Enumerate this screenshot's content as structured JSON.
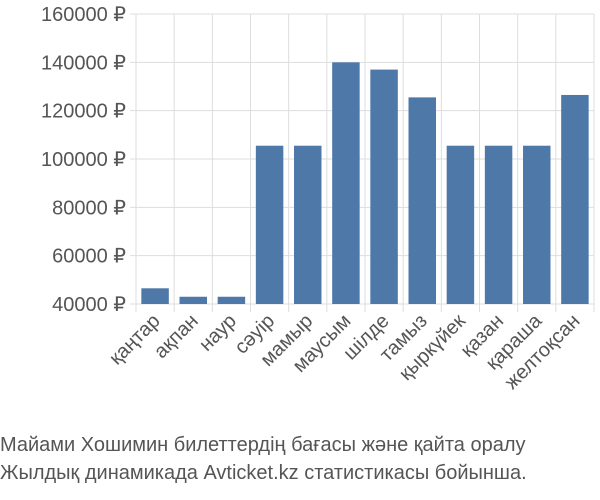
{
  "caption": {
    "line1": "Майами Хошимин билеттердің бағасы және қайта оралу",
    "line2": "Жылдық динамикада Avticket.kz статистикасы бойынша."
  },
  "chart_data": {
    "type": "bar",
    "categories": [
      "қаңтар",
      "ақпан",
      "наур",
      "сәуір",
      "мамыр",
      "маусым",
      "шілде",
      "тамыз",
      "қыркүйек",
      "қазан",
      "қараша",
      "желтоқсан"
    ],
    "values": [
      46500,
      43000,
      43000,
      105500,
      105500,
      140000,
      137000,
      125500,
      105500,
      105500,
      105500,
      126500
    ],
    "ylim": [
      40000,
      160000
    ],
    "yticks": [
      40000,
      60000,
      80000,
      100000,
      120000,
      140000,
      160000
    ],
    "ytick_labels": [
      "40000 ₽",
      "60000 ₽",
      "80000 ₽",
      "100000 ₽",
      "120000 ₽",
      "140000 ₽",
      "160000 ₽"
    ],
    "bar_color": "#4e78a8",
    "grid_color": "#dddddd",
    "grid": true,
    "legend": "none"
  }
}
